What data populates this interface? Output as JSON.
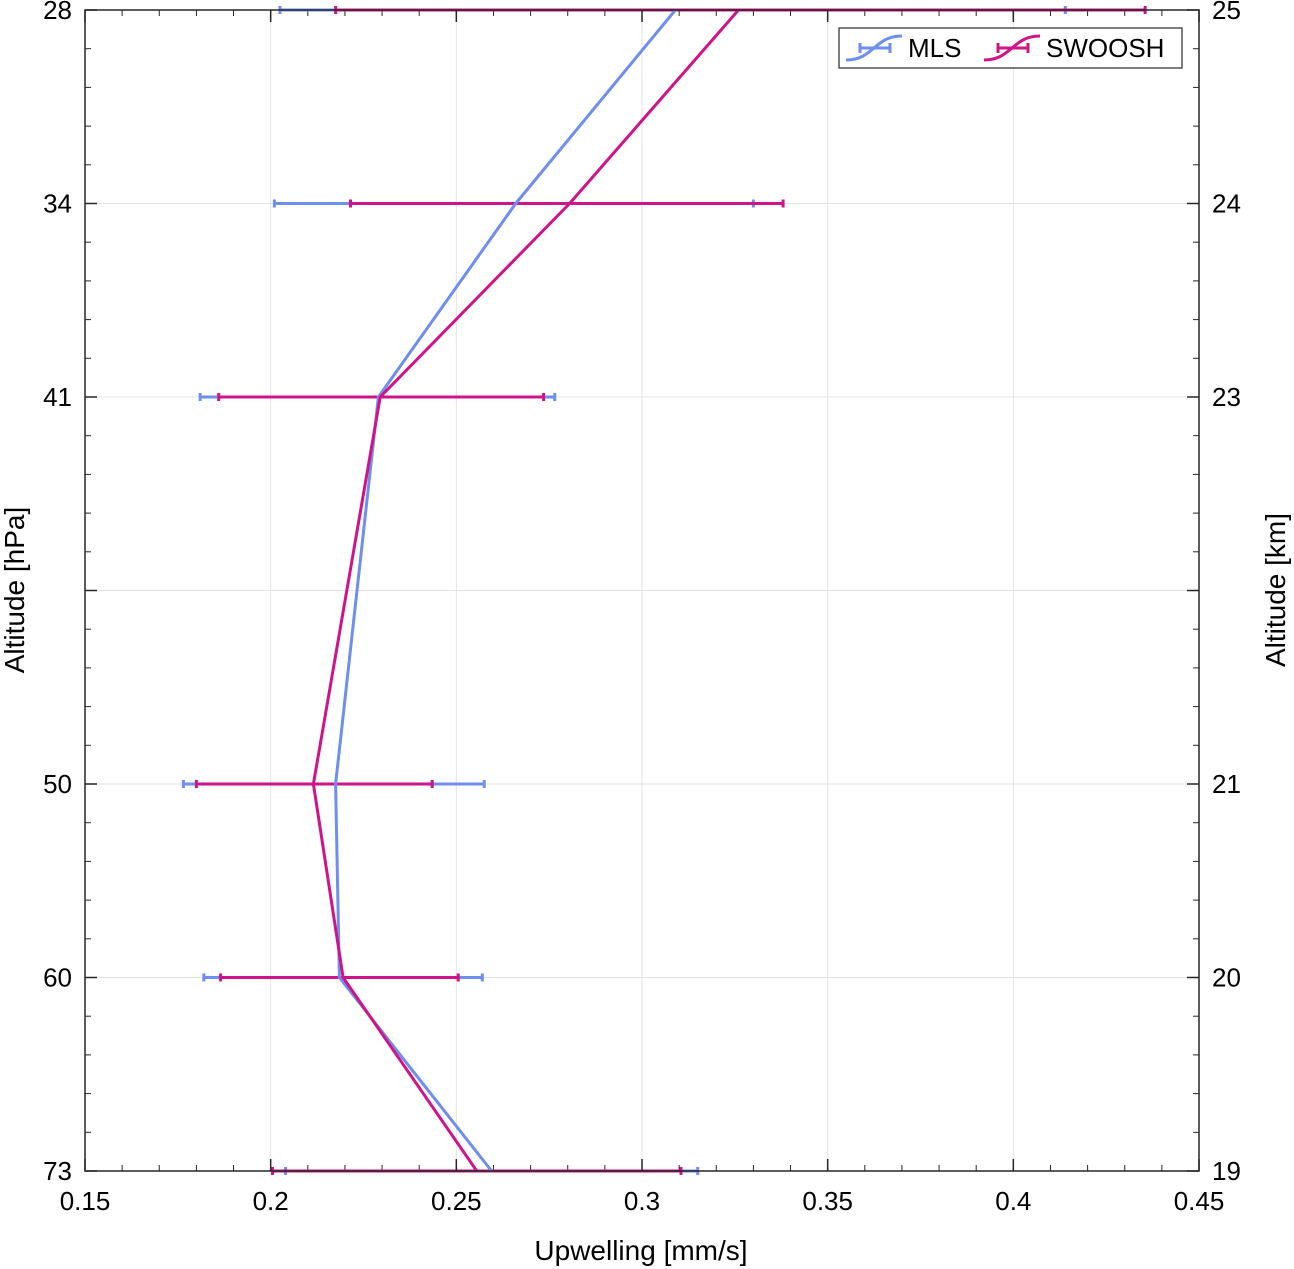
{
  "chart_data": {
    "type": "line",
    "orientation": "vertical-profile",
    "xlabel": "Upwelling [mm/s]",
    "ylabel_left": "Altitude [hPa]",
    "ylabel_right": "Altitude [km]",
    "xlim": [
      0.15,
      0.45
    ],
    "x_ticks": [
      0.15,
      0.2,
      0.25,
      0.3,
      0.35,
      0.4,
      0.45
    ],
    "x_tick_labels": [
      "0.15",
      "0.2",
      "0.25",
      "0.3",
      "0.35",
      "0.4",
      "0.45"
    ],
    "ylim_km": [
      19,
      25
    ],
    "levels_km": [
      19,
      20,
      21,
      23,
      24,
      25
    ],
    "y_left_tick_labels": [
      "73",
      "60",
      "50",
      "41",
      "34",
      "28"
    ],
    "y_right_tick_labels": [
      "19",
      "20",
      "21",
      "23",
      "24",
      "25"
    ],
    "grid": true,
    "legend_position": "top-right",
    "series": [
      {
        "name": "MLS",
        "color": "#6e8ef0",
        "values": [
          0.2595,
          0.2185,
          0.2175,
          0.229,
          0.266,
          0.309
        ],
        "err_low": [
          0.204,
          0.182,
          0.1765,
          0.181,
          0.201,
          0.2025
        ],
        "err_high": [
          0.315,
          0.257,
          0.2575,
          0.2765,
          0.33,
          0.414
        ]
      },
      {
        "name": "SWOOSH",
        "color": "#cf1489",
        "values": [
          0.2555,
          0.2195,
          0.2115,
          0.2295,
          0.2805,
          0.326
        ],
        "err_low": [
          0.2005,
          0.1865,
          0.18,
          0.186,
          0.2215,
          0.2175
        ],
        "err_high": [
          0.3105,
          0.2505,
          0.2435,
          0.2735,
          0.338,
          0.4355
        ]
      }
    ]
  }
}
